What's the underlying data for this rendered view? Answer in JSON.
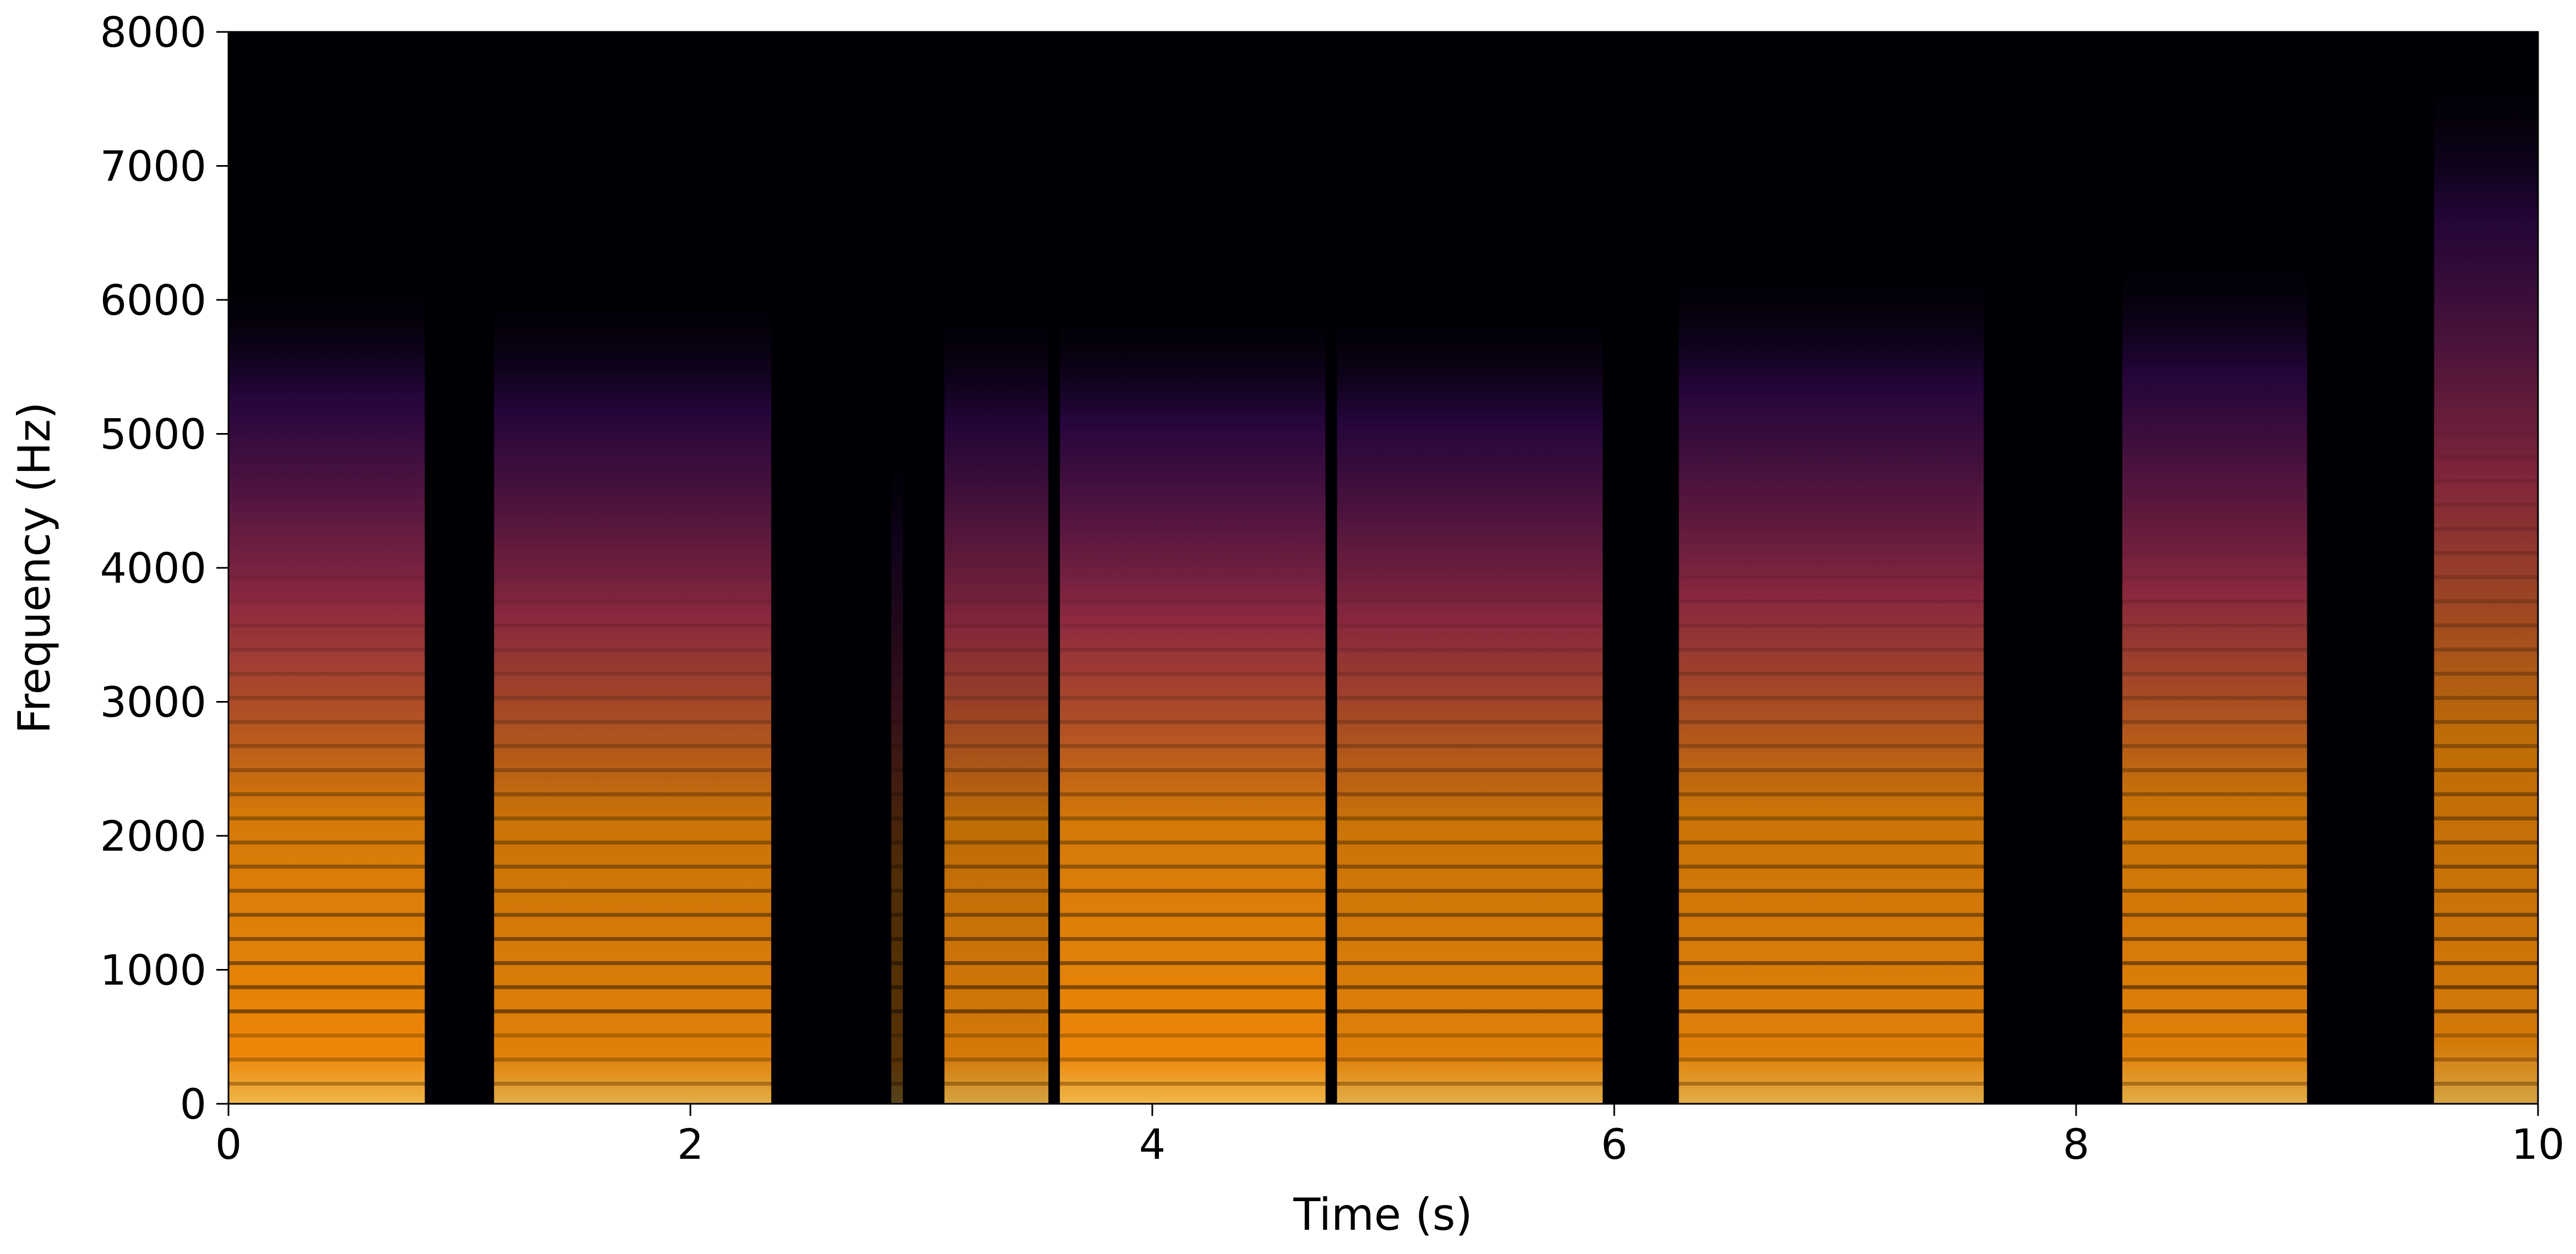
{
  "chart_data": {
    "type": "heatmap",
    "subtype": "spectrogram",
    "xlabel": "Time (s)",
    "ylabel": "Frequency (Hz)",
    "xlim": [
      0,
      10
    ],
    "ylim": [
      0,
      8000
    ],
    "xticks": [
      0,
      2,
      4,
      6,
      8,
      10
    ],
    "yticks": [
      0,
      1000,
      2000,
      3000,
      4000,
      5000,
      6000,
      7000,
      8000
    ],
    "colormap": "inferno",
    "grid": false,
    "legend": "none",
    "speech_segments": [
      {
        "start": 0.0,
        "end": 0.85,
        "max_freq": 6200,
        "peak": 0.95
      },
      {
        "start": 1.15,
        "end": 2.35,
        "max_freq": 6100,
        "peak": 0.9
      },
      {
        "start": 2.87,
        "end": 2.92,
        "max_freq": 5000,
        "peak": 0.35
      },
      {
        "start": 3.1,
        "end": 3.55,
        "max_freq": 6000,
        "peak": 0.85
      },
      {
        "start": 3.6,
        "end": 4.75,
        "max_freq": 6000,
        "peak": 0.95
      },
      {
        "start": 4.8,
        "end": 5.95,
        "max_freq": 6000,
        "peak": 0.9
      },
      {
        "start": 6.28,
        "end": 7.6,
        "max_freq": 6300,
        "peak": 0.9
      },
      {
        "start": 8.2,
        "end": 9.0,
        "max_freq": 6400,
        "peak": 0.9
      },
      {
        "start": 9.55,
        "end": 10.0,
        "max_freq": 7800,
        "peak": 0.85
      }
    ],
    "colors": {
      "background": "#000004",
      "low": "#420a68",
      "mid": "#bc3754",
      "high": "#f98e09",
      "peak": "#fcffa4"
    }
  }
}
